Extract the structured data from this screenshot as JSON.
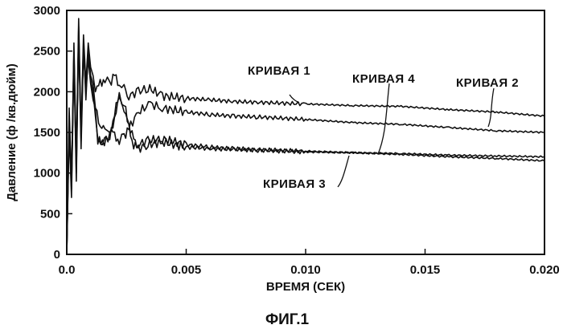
{
  "chart_data": {
    "type": "line",
    "ylabel": "Давление (ф /кв.дюйм)",
    "xlabel": "ВРЕМЯ (СЕК)",
    "xlim": [
      0.0,
      0.02
    ],
    "ylim": [
      0,
      3000
    ],
    "xticks": [
      "0.0",
      "0.005",
      "0.010",
      "0.015",
      "0.020"
    ],
    "xtick_values": [
      0,
      0.005,
      0.01,
      0.015,
      0.02
    ],
    "yticks": [
      "0",
      "500",
      "1000",
      "1500",
      "2000",
      "2500",
      "3000"
    ],
    "ytick_values": [
      0,
      500,
      1000,
      1500,
      2000,
      2500,
      3000
    ],
    "grid": false,
    "series": [
      {
        "name": "КРИВАЯ 1",
        "x": [
          0,
          0.0001,
          0.0002,
          0.0003,
          0.0004,
          0.0005,
          0.0006,
          0.0007,
          0.0008,
          0.0009,
          0.001,
          0.0011,
          0.0012,
          0.0014,
          0.0016,
          0.0018,
          0.002,
          0.0022,
          0.0024,
          0.0026,
          0.003,
          0.0034,
          0.004,
          0.005,
          0.006,
          0.007,
          0.008,
          0.01,
          0.012,
          0.014,
          0.016,
          0.018,
          0.02
        ],
        "y": [
          0,
          1800,
          900,
          2600,
          1200,
          2900,
          1500,
          2700,
          2100,
          2600,
          2300,
          2200,
          2000,
          2100,
          2150,
          2100,
          2200,
          2100,
          2050,
          1950,
          2000,
          2050,
          1950,
          1920,
          1900,
          1880,
          1870,
          1850,
          1830,
          1820,
          1780,
          1750,
          1700
        ]
      },
      {
        "name": "КРИВАЯ 2",
        "x": [
          0,
          0.0001,
          0.0002,
          0.0003,
          0.0004,
          0.0005,
          0.0006,
          0.0007,
          0.0008,
          0.0009,
          0.001,
          0.0011,
          0.0012,
          0.0014,
          0.0016,
          0.0018,
          0.002,
          0.0022,
          0.0024,
          0.0026,
          0.003,
          0.0035,
          0.004,
          0.005,
          0.006,
          0.007,
          0.008,
          0.01,
          0.012,
          0.014,
          0.016,
          0.018,
          0.02
        ],
        "y": [
          0,
          1500,
          700,
          2400,
          900,
          2750,
          1300,
          2500,
          2000,
          2400,
          2100,
          1900,
          1800,
          1600,
          1500,
          1550,
          1450,
          1400,
          1450,
          1550,
          1750,
          1850,
          1800,
          1750,
          1720,
          1700,
          1690,
          1660,
          1620,
          1600,
          1560,
          1520,
          1500
        ]
      },
      {
        "name": "КРИВАЯ 3",
        "x": [
          0,
          0.0001,
          0.0002,
          0.0003,
          0.0004,
          0.0005,
          0.0006,
          0.0007,
          0.0008,
          0.0009,
          0.001,
          0.0011,
          0.0012,
          0.0013,
          0.0015,
          0.0018,
          0.002,
          0.0022,
          0.0024,
          0.0026,
          0.0028,
          0.003,
          0.0034,
          0.004,
          0.005,
          0.006,
          0.007,
          0.008,
          0.01,
          0.012,
          0.014,
          0.016,
          0.018,
          0.02
        ],
        "y": [
          0,
          1600,
          800,
          2500,
          1000,
          2800,
          1400,
          2600,
          1900,
          2500,
          2200,
          2100,
          1800,
          1400,
          1380,
          1420,
          1700,
          1900,
          1800,
          1550,
          1350,
          1300,
          1350,
          1380,
          1320,
          1300,
          1290,
          1280,
          1260,
          1250,
          1230,
          1200,
          1180,
          1150
        ]
      },
      {
        "name": "КРИВАЯ 4",
        "x": [
          0,
          0.0001,
          0.0002,
          0.0003,
          0.0004,
          0.0005,
          0.0006,
          0.0007,
          0.0008,
          0.0009,
          0.001,
          0.0011,
          0.0012,
          0.0013,
          0.0015,
          0.0018,
          0.002,
          0.0022,
          0.0024,
          0.0026,
          0.0028,
          0.003,
          0.0034,
          0.004,
          0.005,
          0.006,
          0.007,
          0.008,
          0.01,
          0.012,
          0.014,
          0.016,
          0.018,
          0.02
        ],
        "y": [
          0,
          1700,
          850,
          2450,
          1100,
          2700,
          1450,
          2550,
          2000,
          2450,
          2150,
          2000,
          1700,
          1380,
          1400,
          1450,
          1750,
          1950,
          1850,
          1600,
          1400,
          1350,
          1400,
          1420,
          1350,
          1320,
          1300,
          1290,
          1270,
          1250,
          1240,
          1220,
          1210,
          1200
        ]
      }
    ]
  },
  "labels": {
    "curve1": "КРИВАЯ 1",
    "curve2": "КРИВАЯ 2",
    "curve3": "КРИВАЯ 3",
    "curve4": "КРИВАЯ 4"
  },
  "caption": "ФИГ.1",
  "colors": {
    "ink": "#111111",
    "background": "#ffffff"
  }
}
